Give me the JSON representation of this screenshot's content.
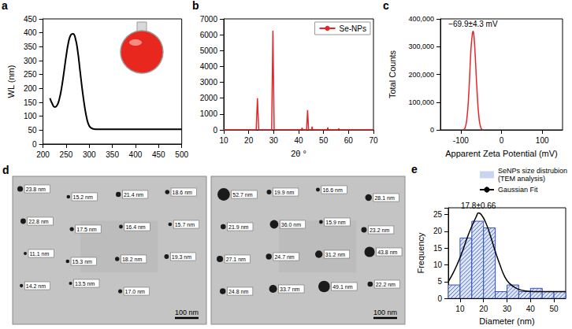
{
  "chart_data": [
    {
      "panel": "a",
      "type": "line",
      "y_label": "WL (nm)",
      "x": [
        215,
        220,
        225,
        230,
        235,
        240,
        245,
        250,
        255,
        260,
        265,
        270,
        275,
        280,
        285,
        290,
        295,
        300,
        305,
        310,
        320,
        340,
        370,
        400,
        450,
        500
      ],
      "values": [
        165,
        145,
        133,
        138,
        160,
        200,
        255,
        315,
        365,
        392,
        396,
        380,
        335,
        265,
        195,
        135,
        90,
        65,
        57,
        54,
        53,
        53,
        53,
        53,
        53,
        53
      ],
      "color": "#000000",
      "xlim": [
        200,
        500
      ],
      "xticks": [
        200,
        250,
        300,
        350,
        400,
        450,
        500
      ],
      "ylim": [
        0,
        450
      ],
      "yticks": [
        0,
        50,
        100,
        150,
        200,
        250,
        300,
        350,
        400,
        450
      ]
    },
    {
      "panel": "b",
      "type": "line",
      "x_label": "2θ °",
      "x": [
        10,
        23.0,
        23.5,
        24.0,
        29.2,
        29.7,
        30.2,
        41.1,
        41.4,
        41.7,
        43.2,
        43.6,
        44.0,
        45.2,
        45.4,
        45.6,
        51.5,
        51.7,
        51.9,
        55.9,
        56.1,
        56.3,
        70
      ],
      "series": [
        {
          "name": "Se-NPs",
          "color": "#e8262a",
          "values": [
            0,
            0,
            2000,
            0,
            0,
            6250,
            0,
            0,
            120,
            0,
            0,
            1250,
            0,
            0,
            200,
            0,
            0,
            150,
            0,
            0,
            80,
            0,
            0
          ]
        }
      ],
      "xlim": [
        10,
        70
      ],
      "xticks": [
        10,
        20,
        30,
        40,
        50,
        60,
        70
      ],
      "ylim": [
        0,
        7000
      ],
      "yticks": [
        0,
        1000,
        2000,
        3000,
        4000,
        5000,
        6000,
        7000
      ],
      "legend": "upper right"
    },
    {
      "panel": "c",
      "type": "line",
      "x_label": "Apparent Zeta Potential (mV)",
      "y_label": "Total Counts",
      "annotations": [
        "−69.9±4.3 mV"
      ],
      "x": [
        -95,
        -90,
        -85,
        -80,
        -75,
        -72,
        -69.9,
        -68,
        -65,
        -60,
        -55,
        -50,
        -45
      ],
      "values": [
        0,
        5000,
        40000,
        140000,
        290000,
        340000,
        355000,
        345000,
        280000,
        140000,
        40000,
        5000,
        0
      ],
      "color": "#e8262a",
      "xlim": [
        -150,
        150
      ],
      "xticks": [
        -100,
        0,
        100
      ],
      "ylim": [
        0,
        400000
      ],
      "yticks": [
        0,
        {
          "value": 100000,
          "label": "100,000"
        },
        {
          "value": 200000,
          "label": "200,000"
        },
        {
          "value": 300000,
          "label": "300,000"
        },
        {
          "value": 400000,
          "label": "400,000"
        }
      ]
    },
    {
      "panel": "e",
      "type": "histogram",
      "x_label": "Diameter (nm)",
      "y_label": "Frequency",
      "annotations": [
        "17.8±0.66"
      ],
      "series": [
        {
          "name": "SeNPs size distrubion (TEM analysis)",
          "type": "histogram",
          "color": "#2f4fbf",
          "bins": [
            5,
            10,
            15,
            20,
            25,
            30,
            35,
            40,
            45,
            50,
            55
          ],
          "values": [
            4,
            18,
            23,
            21,
            2,
            4,
            2,
            3,
            2,
            2
          ]
        },
        {
          "name": "Gaussian Fit",
          "type": "line",
          "color": "#000000",
          "x": [
            5,
            7,
            9,
            11,
            13,
            15,
            17,
            17.8,
            19,
            21,
            23,
            25,
            27,
            29,
            31,
            34,
            38,
            44,
            50,
            55
          ],
          "values": [
            5,
            7.5,
            10.5,
            14,
            18,
            21.5,
            24.5,
            25.5,
            25,
            22.5,
            18.5,
            14,
            10,
            6.5,
            4.5,
            3,
            2.2,
            2,
            2,
            2
          ]
        }
      ],
      "xlim": [
        5,
        55
      ],
      "xticks": [
        10,
        20,
        30,
        40,
        50
      ],
      "ylim": [
        0,
        27
      ],
      "yticks": [
        0,
        5,
        10,
        15,
        20,
        25
      ],
      "legend": "top"
    }
  ],
  "images": {
    "panel": "d",
    "panels": [
      {
        "scale_bar": "100 nm",
        "particle_labels": [
          "23.8 nm",
          "15.2 nm",
          "21.4 nm",
          "18.6 nm",
          "22.8 nm",
          "17.5 nm",
          "16.4 nm",
          "15.7 nm",
          "11.1 nm",
          "15.3 nm",
          "18.2 nm",
          "19.3 nm",
          "14.2 nm",
          "13.5 nm",
          "17.0 nm"
        ]
      },
      {
        "scale_bar": "100 nm",
        "particle_labels": [
          "52.7 nm",
          "19.9 nm",
          "16.6 nm",
          "28.1 nm",
          "21.9 nm",
          "36.0 nm",
          "15.9 nm",
          "23.2 nm",
          "27.1 nm",
          "24.7 nm",
          "31.2 nm",
          "43.8 nm",
          "24.8 nm",
          "33.7 nm",
          "49.1 nm",
          "22.2 nm"
        ]
      }
    ]
  }
}
